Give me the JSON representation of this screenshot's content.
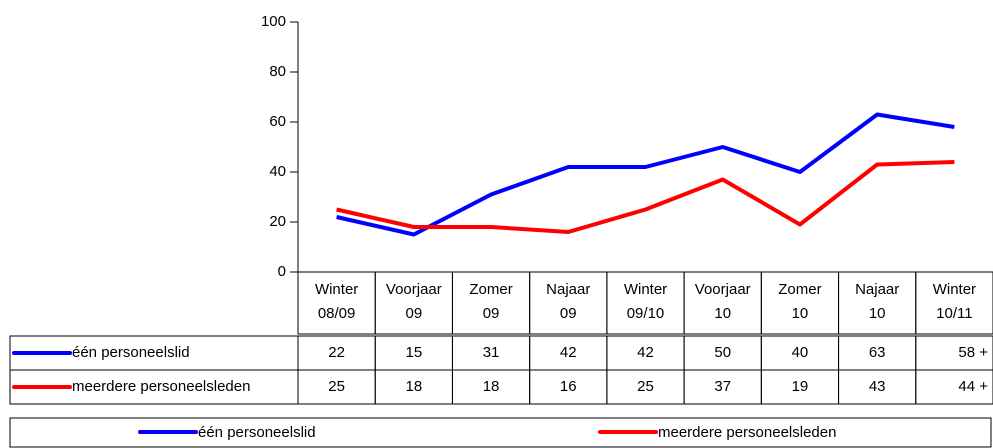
{
  "chart_data": {
    "type": "line",
    "categories": [
      [
        "Winter",
        "08/09"
      ],
      [
        "Voorjaar",
        "09"
      ],
      [
        "Zomer",
        "09"
      ],
      [
        "Najaar",
        "09"
      ],
      [
        "Winter",
        "09/10"
      ],
      [
        "Voorjaar",
        "10"
      ],
      [
        "Zomer",
        "10"
      ],
      [
        "Najaar",
        "10"
      ],
      [
        "Winter",
        "10/11"
      ]
    ],
    "series": [
      {
        "name": "één personeelslid",
        "color": "#0000ff",
        "values": [
          22,
          15,
          31,
          42,
          42,
          50,
          40,
          63,
          58
        ],
        "value_labels": [
          "22",
          "15",
          "31",
          "42",
          "42",
          "50",
          "40",
          "63",
          "58 +"
        ]
      },
      {
        "name": "meerdere personeelsleden",
        "color": "#ff0000",
        "values": [
          25,
          18,
          18,
          16,
          25,
          37,
          19,
          43,
          44
        ],
        "value_labels": [
          "25",
          "18",
          "18",
          "16",
          "25",
          "37",
          "19",
          "43",
          "44 +"
        ]
      }
    ],
    "ylim": [
      0,
      100
    ],
    "yticks": [
      0,
      20,
      40,
      60,
      80,
      100
    ],
    "grid": false,
    "legend": "bottom"
  }
}
